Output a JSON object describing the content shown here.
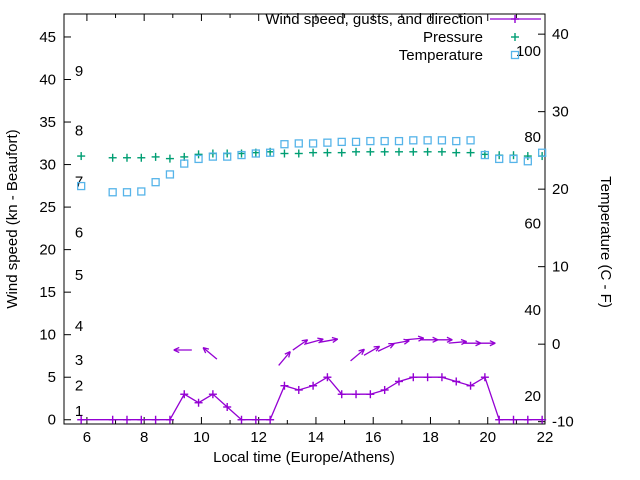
{
  "chart_data": {
    "type": "line",
    "legend": [
      {
        "label": "Wind speed, gusts, and direction",
        "marker": "line-plus",
        "color": "#9400d3"
      },
      {
        "label": "Pressure",
        "marker": "plus",
        "color": "#009e73"
      },
      {
        "label": "Temperature",
        "marker": "square-open",
        "color": "#56b4e9"
      }
    ],
    "x_axis": {
      "label": "Local time (Europe/Athens)",
      "min": 5.2,
      "max": 22,
      "ticks": [
        6,
        8,
        10,
        12,
        14,
        16,
        18,
        20,
        22
      ],
      "minor_ticks": [
        7,
        9,
        11,
        13,
        15,
        17,
        19,
        21
      ]
    },
    "y_left": {
      "label": "Wind speed (kn - Beaufort)",
      "min": -0.5,
      "max": 47.7,
      "ticks": [
        0,
        5,
        10,
        15,
        20,
        25,
        30,
        35,
        40,
        45
      ],
      "inner_labels": [
        {
          "text": "1",
          "value": 1
        },
        {
          "text": "2",
          "value": 4
        },
        {
          "text": "3",
          "value": 7
        },
        {
          "text": "4",
          "value": 11
        },
        {
          "text": "5",
          "value": 17
        },
        {
          "text": "6",
          "value": 22
        },
        {
          "text": "7",
          "value": 28
        },
        {
          "text": "8",
          "value": 34
        },
        {
          "text": "9",
          "value": 41
        }
      ]
    },
    "y_right": {
      "label": "Temperature (C - F)",
      "min": -10.3,
      "max": 42.6,
      "ticks": [
        -10,
        0,
        10,
        20,
        30,
        40
      ],
      "inner_labels": [
        {
          "text": "20",
          "value": -6.7
        },
        {
          "text": "40",
          "value": 4.4
        },
        {
          "text": "60",
          "value": 15.6
        },
        {
          "text": "80",
          "value": 26.7
        },
        {
          "text": "100",
          "value": 37.8
        }
      ]
    },
    "x": [
      5.8,
      6.9,
      7.4,
      7.9,
      8.4,
      8.9,
      9.4,
      9.9,
      10.4,
      10.9,
      11.4,
      11.9,
      12.4,
      12.9,
      13.4,
      13.9,
      14.4,
      14.9,
      15.4,
      15.9,
      16.4,
      16.9,
      17.4,
      17.9,
      18.4,
      18.9,
      19.4,
      19.9,
      20.4,
      20.9,
      21.4,
      21.9
    ],
    "series": [
      {
        "name": "wind-speed",
        "axis": "left",
        "color": "#9400d3",
        "marker": "plus",
        "line": true,
        "values": [
          0,
          0,
          0,
          0,
          0,
          0,
          3,
          2,
          3,
          1.5,
          0,
          0,
          0,
          4,
          3.5,
          4,
          5,
          3,
          3,
          3,
          3.5,
          4.5,
          5,
          5,
          5,
          4.5,
          4,
          5,
          0,
          0,
          0,
          0
        ]
      },
      {
        "name": "pressure",
        "axis": "left",
        "color": "#009e73",
        "marker": "plus",
        "line": false,
        "values": [
          31,
          30.8,
          30.8,
          30.8,
          30.9,
          30.7,
          30.9,
          31.2,
          31.3,
          31.3,
          31.3,
          31.4,
          31.5,
          31.3,
          31.3,
          31.4,
          31.4,
          31.4,
          31.5,
          31.5,
          31.5,
          31.5,
          31.5,
          31.5,
          31.5,
          31.4,
          31.4,
          31.2,
          31.1,
          31.1,
          31,
          31
        ]
      },
      {
        "name": "temperature",
        "axis": "right",
        "color": "#56b4e9",
        "marker": "square-open",
        "line": false,
        "values": [
          20.4,
          19.6,
          19.6,
          19.7,
          20.9,
          21.9,
          23.3,
          23.9,
          24.2,
          24.2,
          24.4,
          24.6,
          24.7,
          25.8,
          25.9,
          25.9,
          26,
          26.1,
          26.1,
          26.2,
          26.2,
          26.2,
          26.3,
          26.3,
          26.3,
          26.2,
          26.3,
          24.4,
          23.9,
          23.9,
          23.6,
          24.7
        ]
      }
    ],
    "gust_arrows": {
      "color": "#9400d3",
      "points": [
        {
          "x": 9.35,
          "kn": 8.2,
          "angle": 180
        },
        {
          "x": 10.3,
          "kn": 7.8,
          "angle": 140
        },
        {
          "x": 12.9,
          "kn": 7.2,
          "angle": 50
        },
        {
          "x": 13.45,
          "kn": 8.8,
          "angle": 35
        },
        {
          "x": 13.95,
          "kn": 9.2,
          "angle": 15
        },
        {
          "x": 14.45,
          "kn": 9.3,
          "angle": 10
        },
        {
          "x": 15.45,
          "kn": 7.6,
          "angle": 40
        },
        {
          "x": 15.95,
          "kn": 8.1,
          "angle": 30
        },
        {
          "x": 16.45,
          "kn": 8.5,
          "angle": 25
        },
        {
          "x": 16.95,
          "kn": 9.1,
          "angle": 10
        },
        {
          "x": 17.45,
          "kn": 9.5,
          "angle": 5
        },
        {
          "x": 17.95,
          "kn": 9.4,
          "angle": 0
        },
        {
          "x": 18.45,
          "kn": 9.4,
          "angle": 0
        },
        {
          "x": 18.95,
          "kn": 9.1,
          "angle": 5
        },
        {
          "x": 19.45,
          "kn": 9.0,
          "angle": 0
        },
        {
          "x": 19.95,
          "kn": 9.0,
          "angle": 0
        }
      ]
    }
  }
}
